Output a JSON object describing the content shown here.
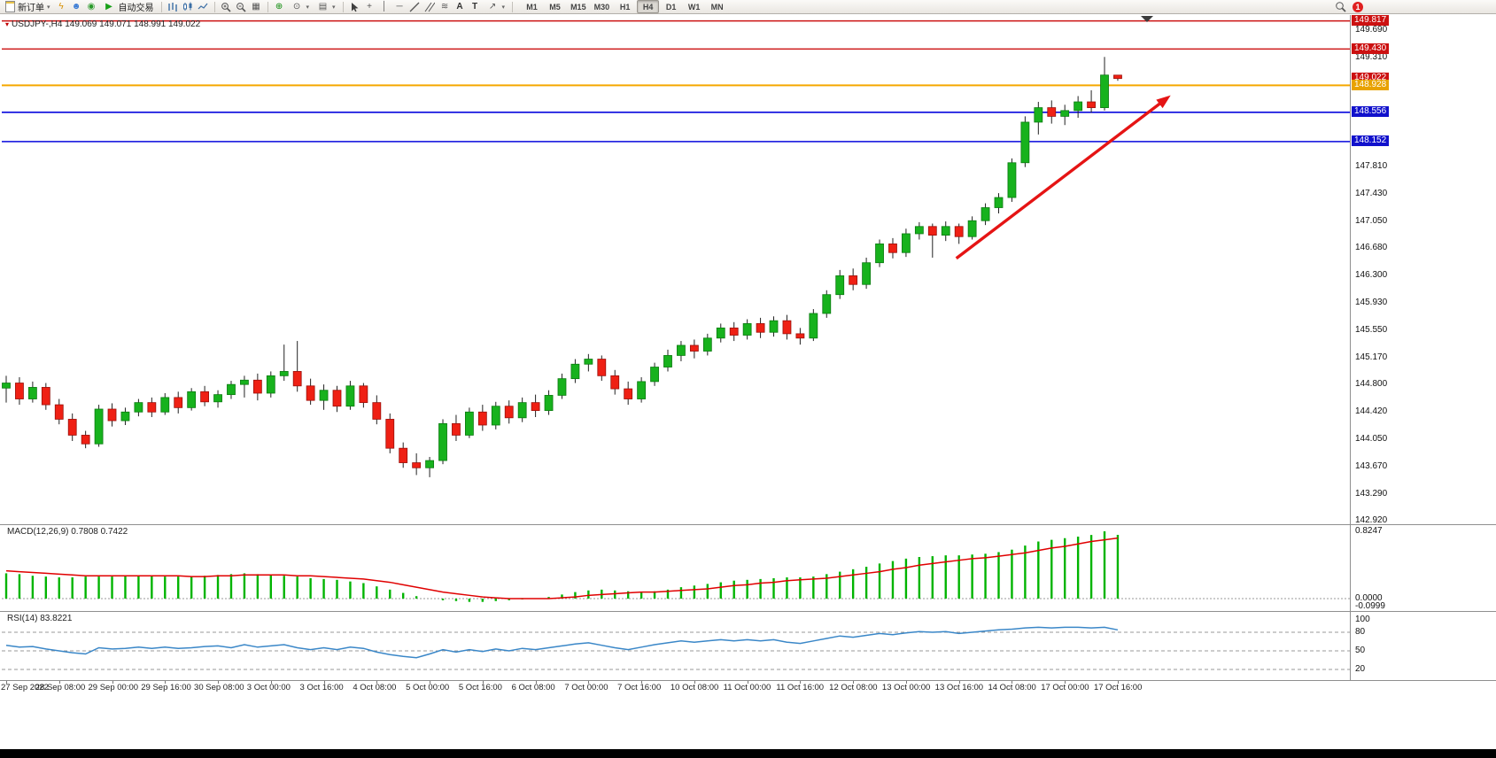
{
  "toolbar": {
    "new_order_label": "新订单",
    "autotrading_label": "自动交易",
    "notification_count": "1",
    "timeframes": [
      {
        "label": "M1",
        "active": false
      },
      {
        "label": "M5",
        "active": false
      },
      {
        "label": "M15",
        "active": false
      },
      {
        "label": "M30",
        "active": false
      },
      {
        "label": "H1",
        "active": false
      },
      {
        "label": "H4",
        "active": true
      },
      {
        "label": "D1",
        "active": false
      },
      {
        "label": "W1",
        "active": false
      },
      {
        "label": "MN",
        "active": false
      }
    ]
  },
  "quote_line": "USDJPY-,H4 149.069 149.071 148.991 149.022",
  "price_axis": {
    "ticks": [
      {
        "label": "149.690",
        "price": 149.69
      },
      {
        "label": "149.310",
        "price": 149.31
      },
      {
        "label": "147.810",
        "price": 147.81
      },
      {
        "label": "147.430",
        "price": 147.43
      },
      {
        "label": "147.050",
        "price": 147.05
      },
      {
        "label": "146.680",
        "price": 146.68
      },
      {
        "label": "146.300",
        "price": 146.3
      },
      {
        "label": "145.930",
        "price": 145.93
      },
      {
        "label": "145.550",
        "price": 145.55
      },
      {
        "label": "145.170",
        "price": 145.17
      },
      {
        "label": "144.800",
        "price": 144.8
      },
      {
        "label": "144.420",
        "price": 144.42
      },
      {
        "label": "144.050",
        "price": 144.05
      },
      {
        "label": "143.670",
        "price": 143.67
      },
      {
        "label": "143.290",
        "price": 143.29
      },
      {
        "label": "142.920",
        "price": 142.92
      }
    ],
    "boxes": [
      {
        "label": "149.817",
        "price": 149.817,
        "color": "#cc1111"
      },
      {
        "label": "149.430",
        "price": 149.43,
        "color": "#cc1111"
      },
      {
        "label": "149.022",
        "price": 149.022,
        "color": "#cc1111"
      },
      {
        "label": "148.928",
        "price": 148.928,
        "color": "#e8a200"
      },
      {
        "label": "148.556",
        "price": 148.556,
        "color": "#1111cc"
      },
      {
        "label": "148.152",
        "price": 148.152,
        "color": "#1111cc"
      }
    ]
  },
  "indicators": {
    "macd_label": "MACD(12,26,9) 0.7808 0.7422",
    "macd_axis": [
      {
        "label": "0.8247",
        "value": 0.8247
      },
      {
        "label": "0.0000",
        "value": 0
      },
      {
        "label": "-0.0999",
        "value": -0.0999
      }
    ],
    "rsi_label": "RSI(14) 83.8221",
    "rsi_axis": [
      {
        "label": "100",
        "value": 100
      },
      {
        "label": "80",
        "value": 80
      },
      {
        "label": "50",
        "value": 50
      },
      {
        "label": "20",
        "value": 20
      }
    ]
  },
  "time_axis": {
    "labels": [
      {
        "label": "27 Sep 2022",
        "bar": 0
      },
      {
        "label": "28 Sep 08:00",
        "bar": 4
      },
      {
        "label": "29 Sep 00:00",
        "bar": 8
      },
      {
        "label": "29 Sep 16:00",
        "bar": 12
      },
      {
        "label": "30 Sep 08:00",
        "bar": 16
      },
      {
        "label": "3 Oct 00:00",
        "bar": 20
      },
      {
        "label": "3 Oct 16:00",
        "bar": 24
      },
      {
        "label": "4 Oct 08:00",
        "bar": 28
      },
      {
        "label": "5 Oct 00:00",
        "bar": 32
      },
      {
        "label": "5 Oct 16:00",
        "bar": 36
      },
      {
        "label": "6 Oct 08:00",
        "bar": 40
      },
      {
        "label": "7 Oct 00:00",
        "bar": 44
      },
      {
        "label": "7 Oct 16:00",
        "bar": 48
      },
      {
        "label": "10 Oct 08:00",
        "bar": 52
      },
      {
        "label": "11 Oct 00:00",
        "bar": 56
      },
      {
        "label": "11 Oct 16:00",
        "bar": 60
      },
      {
        "label": "12 Oct 08:00",
        "bar": 64
      },
      {
        "label": "13 Oct 00:00",
        "bar": 68
      },
      {
        "label": "13 Oct 16:00",
        "bar": 72
      },
      {
        "label": "14 Oct 08:00",
        "bar": 76
      },
      {
        "label": "17 Oct 00:00",
        "bar": 80
      },
      {
        "label": "17 Oct 16:00",
        "bar": 84
      }
    ]
  },
  "chart_data": [
    {
      "type": "candlestick",
      "symbol": "USDJPY-",
      "timeframe": "H4",
      "title": "USDJPY-,H4",
      "ylim": [
        142.87,
        149.9
      ],
      "up_color": "#17b21d",
      "down_color": "#ef2014",
      "ohlc": [
        [
          144.75,
          144.92,
          144.55,
          144.82
        ],
        [
          144.82,
          144.9,
          144.52,
          144.6
        ],
        [
          144.6,
          144.84,
          144.55,
          144.76
        ],
        [
          144.76,
          144.82,
          144.45,
          144.52
        ],
        [
          144.52,
          144.6,
          144.25,
          144.32
        ],
        [
          144.32,
          144.4,
          144.02,
          144.1
        ],
        [
          144.1,
          144.16,
          143.92,
          143.98
        ],
        [
          143.98,
          144.52,
          143.94,
          144.46
        ],
        [
          144.46,
          144.54,
          144.22,
          144.3
        ],
        [
          144.3,
          144.48,
          144.24,
          144.42
        ],
        [
          144.42,
          144.6,
          144.36,
          144.55
        ],
        [
          144.55,
          144.62,
          144.35,
          144.42
        ],
        [
          144.42,
          144.68,
          144.38,
          144.62
        ],
        [
          144.62,
          144.7,
          144.4,
          144.48
        ],
        [
          144.48,
          144.75,
          144.44,
          144.7
        ],
        [
          144.7,
          144.78,
          144.5,
          144.56
        ],
        [
          144.56,
          144.72,
          144.48,
          144.66
        ],
        [
          144.66,
          144.85,
          144.6,
          144.8
        ],
        [
          144.8,
          144.92,
          144.62,
          144.86
        ],
        [
          144.86,
          144.95,
          144.58,
          144.68
        ],
        [
          144.68,
          144.98,
          144.62,
          144.92
        ],
        [
          144.92,
          145.35,
          144.85,
          144.98
        ],
        [
          144.98,
          145.4,
          144.7,
          144.78
        ],
        [
          144.78,
          144.88,
          144.52,
          144.58
        ],
        [
          144.58,
          144.8,
          144.45,
          144.72
        ],
        [
          144.72,
          144.78,
          144.42,
          144.5
        ],
        [
          144.5,
          144.85,
          144.45,
          144.78
        ],
        [
          144.78,
          144.82,
          144.48,
          144.55
        ],
        [
          144.55,
          144.65,
          144.25,
          144.32
        ],
        [
          144.32,
          144.4,
          143.85,
          143.92
        ],
        [
          143.92,
          144.0,
          143.65,
          143.72
        ],
        [
          143.72,
          143.85,
          143.55,
          143.65
        ],
        [
          143.65,
          143.8,
          143.52,
          143.75
        ],
        [
          143.75,
          144.32,
          143.7,
          144.26
        ],
        [
          144.26,
          144.38,
          144.02,
          144.1
        ],
        [
          144.1,
          144.48,
          144.06,
          144.42
        ],
        [
          144.42,
          144.52,
          144.16,
          144.24
        ],
        [
          144.24,
          144.56,
          144.18,
          144.5
        ],
        [
          144.5,
          144.58,
          144.26,
          144.34
        ],
        [
          144.34,
          144.62,
          144.28,
          144.55
        ],
        [
          144.55,
          144.66,
          144.35,
          144.44
        ],
        [
          144.44,
          144.72,
          144.38,
          144.65
        ],
        [
          144.65,
          144.95,
          144.6,
          144.88
        ],
        [
          144.88,
          145.15,
          144.82,
          145.08
        ],
        [
          145.08,
          145.22,
          144.98,
          145.15
        ],
        [
          145.15,
          145.2,
          144.85,
          144.92
        ],
        [
          144.92,
          145.0,
          144.66,
          144.74
        ],
        [
          144.74,
          144.84,
          144.52,
          144.6
        ],
        [
          144.6,
          144.9,
          144.55,
          144.84
        ],
        [
          144.84,
          145.1,
          144.78,
          145.04
        ],
        [
          145.04,
          145.28,
          144.98,
          145.2
        ],
        [
          145.2,
          145.4,
          145.12,
          145.34
        ],
        [
          145.34,
          145.42,
          145.16,
          145.26
        ],
        [
          145.26,
          145.5,
          145.2,
          145.44
        ],
        [
          145.44,
          145.64,
          145.38,
          145.58
        ],
        [
          145.58,
          145.66,
          145.4,
          145.48
        ],
        [
          145.48,
          145.7,
          145.42,
          145.64
        ],
        [
          145.64,
          145.72,
          145.44,
          145.52
        ],
        [
          145.52,
          145.74,
          145.46,
          145.68
        ],
        [
          145.68,
          145.76,
          145.42,
          145.5
        ],
        [
          145.5,
          145.58,
          145.35,
          145.44
        ],
        [
          145.44,
          145.84,
          145.4,
          145.78
        ],
        [
          145.78,
          146.1,
          145.72,
          146.04
        ],
        [
          146.04,
          146.38,
          145.98,
          146.3
        ],
        [
          146.3,
          146.4,
          146.1,
          146.18
        ],
        [
          146.18,
          146.55,
          146.12,
          146.48
        ],
        [
          146.48,
          146.8,
          146.42,
          146.74
        ],
        [
          146.74,
          146.82,
          146.54,
          146.62
        ],
        [
          146.62,
          146.95,
          146.56,
          146.88
        ],
        [
          146.88,
          147.04,
          146.8,
          146.98
        ],
        [
          146.98,
          147.02,
          146.55,
          146.86
        ],
        [
          146.86,
          147.05,
          146.78,
          146.98
        ],
        [
          146.98,
          147.02,
          146.74,
          146.84
        ],
        [
          146.84,
          147.12,
          146.8,
          147.06
        ],
        [
          147.06,
          147.3,
          147.0,
          147.24
        ],
        [
          147.24,
          147.44,
          147.16,
          147.38
        ],
        [
          147.38,
          147.92,
          147.32,
          147.86
        ],
        [
          147.86,
          148.5,
          147.8,
          148.42
        ],
        [
          148.42,
          148.7,
          148.25,
          148.62
        ],
        [
          148.62,
          148.72,
          148.4,
          148.5
        ],
        [
          148.5,
          148.66,
          148.38,
          148.58
        ],
        [
          148.58,
          148.78,
          148.48,
          148.7
        ],
        [
          148.7,
          148.86,
          148.55,
          148.62
        ],
        [
          148.62,
          149.32,
          148.58,
          149.07
        ],
        [
          149.069,
          149.071,
          148.991,
          149.022
        ]
      ],
      "hlines": [
        {
          "price": 149.817,
          "color": "#cc1111",
          "width": 1.4
        },
        {
          "price": 149.43,
          "color": "#cc1111",
          "width": 1.4
        },
        {
          "price": 148.928,
          "color": "#f5a800",
          "width": 2
        },
        {
          "price": 148.556,
          "color": "#0808dd",
          "width": 1.6
        },
        {
          "price": 148.152,
          "color": "#0808dd",
          "width": 1.6
        }
      ],
      "trend_arrow": {
        "from_bar": 71.8,
        "from_price": 146.54,
        "to_bar": 88,
        "to_price": 148.79,
        "color": "#e51414"
      }
    },
    {
      "type": "bar",
      "name": "MACD(12,26,9)",
      "current_macd": 0.7808,
      "current_signal": 0.7422,
      "ylim": [
        -0.0999,
        0.8247
      ],
      "histogram_color": "#00b400",
      "signal_color": "#e00000",
      "values": [
        0.31,
        0.3,
        0.28,
        0.27,
        0.26,
        0.26,
        0.27,
        0.27,
        0.27,
        0.28,
        0.28,
        0.28,
        0.27,
        0.27,
        0.27,
        0.28,
        0.29,
        0.3,
        0.31,
        0.3,
        0.29,
        0.28,
        0.27,
        0.25,
        0.24,
        0.23,
        0.21,
        0.19,
        0.15,
        0.11,
        0.07,
        0.03,
        0,
        -0.02,
        -0.03,
        -0.04,
        -0.04,
        -0.03,
        -0.02,
        -0.01,
        0,
        0.02,
        0.05,
        0.08,
        0.1,
        0.11,
        0.1,
        0.09,
        0.08,
        0.09,
        0.11,
        0.14,
        0.16,
        0.18,
        0.2,
        0.22,
        0.23,
        0.24,
        0.25,
        0.26,
        0.26,
        0.27,
        0.3,
        0.33,
        0.36,
        0.39,
        0.43,
        0.46,
        0.49,
        0.51,
        0.52,
        0.53,
        0.53,
        0.54,
        0.55,
        0.57,
        0.6,
        0.65,
        0.7,
        0.72,
        0.74,
        0.76,
        0.78,
        0.8247,
        0.7808
      ],
      "signal": [
        0.34,
        0.33,
        0.32,
        0.31,
        0.3,
        0.29,
        0.28,
        0.28,
        0.28,
        0.28,
        0.28,
        0.28,
        0.28,
        0.28,
        0.27,
        0.27,
        0.28,
        0.28,
        0.29,
        0.29,
        0.29,
        0.29,
        0.28,
        0.28,
        0.27,
        0.26,
        0.25,
        0.24,
        0.22,
        0.2,
        0.17,
        0.14,
        0.11,
        0.08,
        0.06,
        0.04,
        0.02,
        0.01,
        0,
        0,
        0,
        0,
        0.01,
        0.02,
        0.04,
        0.05,
        0.06,
        0.07,
        0.08,
        0.08,
        0.09,
        0.1,
        0.11,
        0.12,
        0.14,
        0.16,
        0.17,
        0.19,
        0.2,
        0.22,
        0.23,
        0.24,
        0.25,
        0.27,
        0.29,
        0.31,
        0.33,
        0.36,
        0.38,
        0.41,
        0.43,
        0.45,
        0.47,
        0.49,
        0.5,
        0.52,
        0.54,
        0.56,
        0.59,
        0.62,
        0.64,
        0.67,
        0.7,
        0.72,
        0.7422
      ]
    },
    {
      "type": "line",
      "name": "RSI(14)",
      "current": 83.8221,
      "ylim": [
        0,
        100
      ],
      "levels": [
        80,
        50,
        20
      ],
      "color": "#3a87c8",
      "values": [
        59,
        56,
        57,
        53,
        50,
        47,
        45,
        55,
        53,
        54,
        56,
        54,
        56,
        54,
        55,
        57,
        58,
        55,
        60,
        56,
        58,
        60,
        55,
        52,
        55,
        52,
        56,
        54,
        48,
        44,
        41,
        39,
        45,
        52,
        48,
        52,
        49,
        53,
        50,
        54,
        52,
        55,
        58,
        61,
        63,
        59,
        55,
        52,
        56,
        60,
        63,
        66,
        64,
        66,
        68,
        66,
        68,
        66,
        68,
        64,
        62,
        66,
        70,
        74,
        72,
        75,
        78,
        76,
        79,
        81,
        80,
        81,
        78,
        80,
        82,
        84,
        85,
        87,
        88,
        87,
        88,
        88,
        87,
        88,
        83.82
      ]
    }
  ]
}
